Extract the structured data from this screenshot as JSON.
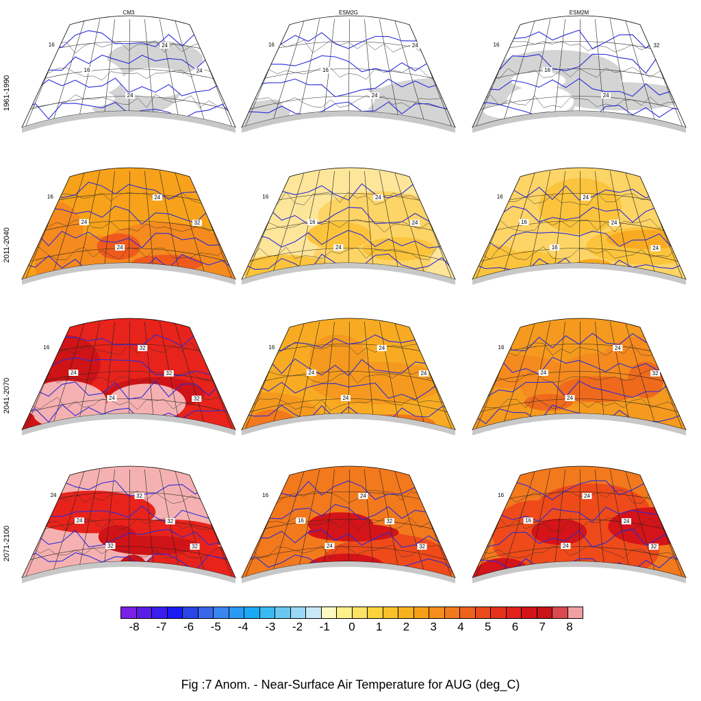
{
  "columns": [
    "CM3",
    "ESM2G",
    "ESM2M"
  ],
  "rows": [
    "1961-1990",
    "2011-2040",
    "2041-2070",
    "2071-2100"
  ],
  "contour_labels": [
    "16",
    "24",
    "32"
  ],
  "panels": [
    [
      {
        "base": "#ffffff",
        "mid": "#d4d4d4",
        "hot": "#ffffff",
        "labels": [
          "16",
          "16",
          "24",
          "24",
          "24"
        ]
      },
      {
        "base": "#ffffff",
        "mid": "#d4d4d4",
        "hot": "#ffffff",
        "labels": [
          "16",
          "16",
          "24",
          "24"
        ]
      },
      {
        "base": "#ffffff",
        "mid": "#d4d4d4",
        "hot": "#ffffff",
        "labels": [
          "16",
          "16",
          "24",
          "32"
        ]
      }
    ],
    [
      {
        "base": "#f7a21a",
        "mid": "#f58a1e",
        "hot": "#ef5a1c",
        "labels": [
          "16",
          "24",
          "24",
          "24",
          "32"
        ]
      },
      {
        "base": "#fde59a",
        "mid": "#fdd466",
        "hot": "#fbc43c",
        "labels": [
          "16",
          "16",
          "24",
          "24",
          "24"
        ]
      },
      {
        "base": "#fdd466",
        "mid": "#fbc43c",
        "hot": "#f8ab22",
        "labels": [
          "16",
          "16",
          "16",
          "24",
          "24",
          "24"
        ]
      }
    ],
    [
      {
        "base": "#e8231b",
        "mid": "#cf1316",
        "hot": "#f5b1b1",
        "labels": [
          "16",
          "24",
          "24",
          "32",
          "32",
          "32"
        ]
      },
      {
        "base": "#f8ab22",
        "mid": "#f59a1e",
        "hot": "#f3791d",
        "labels": [
          "16",
          "24",
          "24",
          "24",
          "24"
        ]
      },
      {
        "base": "#f59a1e",
        "mid": "#f58a1e",
        "hot": "#ef6a1c",
        "labels": [
          "16",
          "24",
          "24",
          "24",
          "32"
        ]
      }
    ],
    [
      {
        "base": "#f5b1b1",
        "mid": "#e8231b",
        "hot": "#cf1316",
        "labels": [
          "24",
          "24",
          "32",
          "32",
          "32",
          "32"
        ]
      },
      {
        "base": "#f3791d",
        "mid": "#ef4a1a",
        "hot": "#d41418",
        "labels": [
          "16",
          "16",
          "24",
          "24",
          "32",
          "32"
        ]
      },
      {
        "base": "#f3791d",
        "mid": "#ef4a1a",
        "hot": "#d41418",
        "labels": [
          "16",
          "16",
          "24",
          "24",
          "24",
          "32"
        ]
      }
    ]
  ],
  "colorbar": {
    "colors": [
      "#7b1fe6",
      "#5a1ee6",
      "#3a1ef0",
      "#1a1af5",
      "#2a44e6",
      "#3a66ea",
      "#3a86ef",
      "#2a9af5",
      "#1aaaf5",
      "#3abaf0",
      "#6ac8f0",
      "#9ad8f5",
      "#c8e8f8",
      "#fff8c0",
      "#fef08a",
      "#fde266",
      "#fbd33c",
      "#f9c22a",
      "#f8b21e",
      "#f6a01a",
      "#f58e1a",
      "#f27a1c",
      "#ef621c",
      "#eb4a1c",
      "#e6321c",
      "#e0221b",
      "#d41418",
      "#c81418",
      "#d84a50",
      "#f0a0a0"
    ],
    "ticks": [
      "-8",
      "-7",
      "-6",
      "-5",
      "-4",
      "-3",
      "-2",
      "-1",
      "0",
      "1",
      "2",
      "3",
      "4",
      "5",
      "6",
      "7",
      "8"
    ]
  },
  "caption": "Fig :7  Anom.  - Near-Surface Air Temperature for AUG (deg_C)"
}
